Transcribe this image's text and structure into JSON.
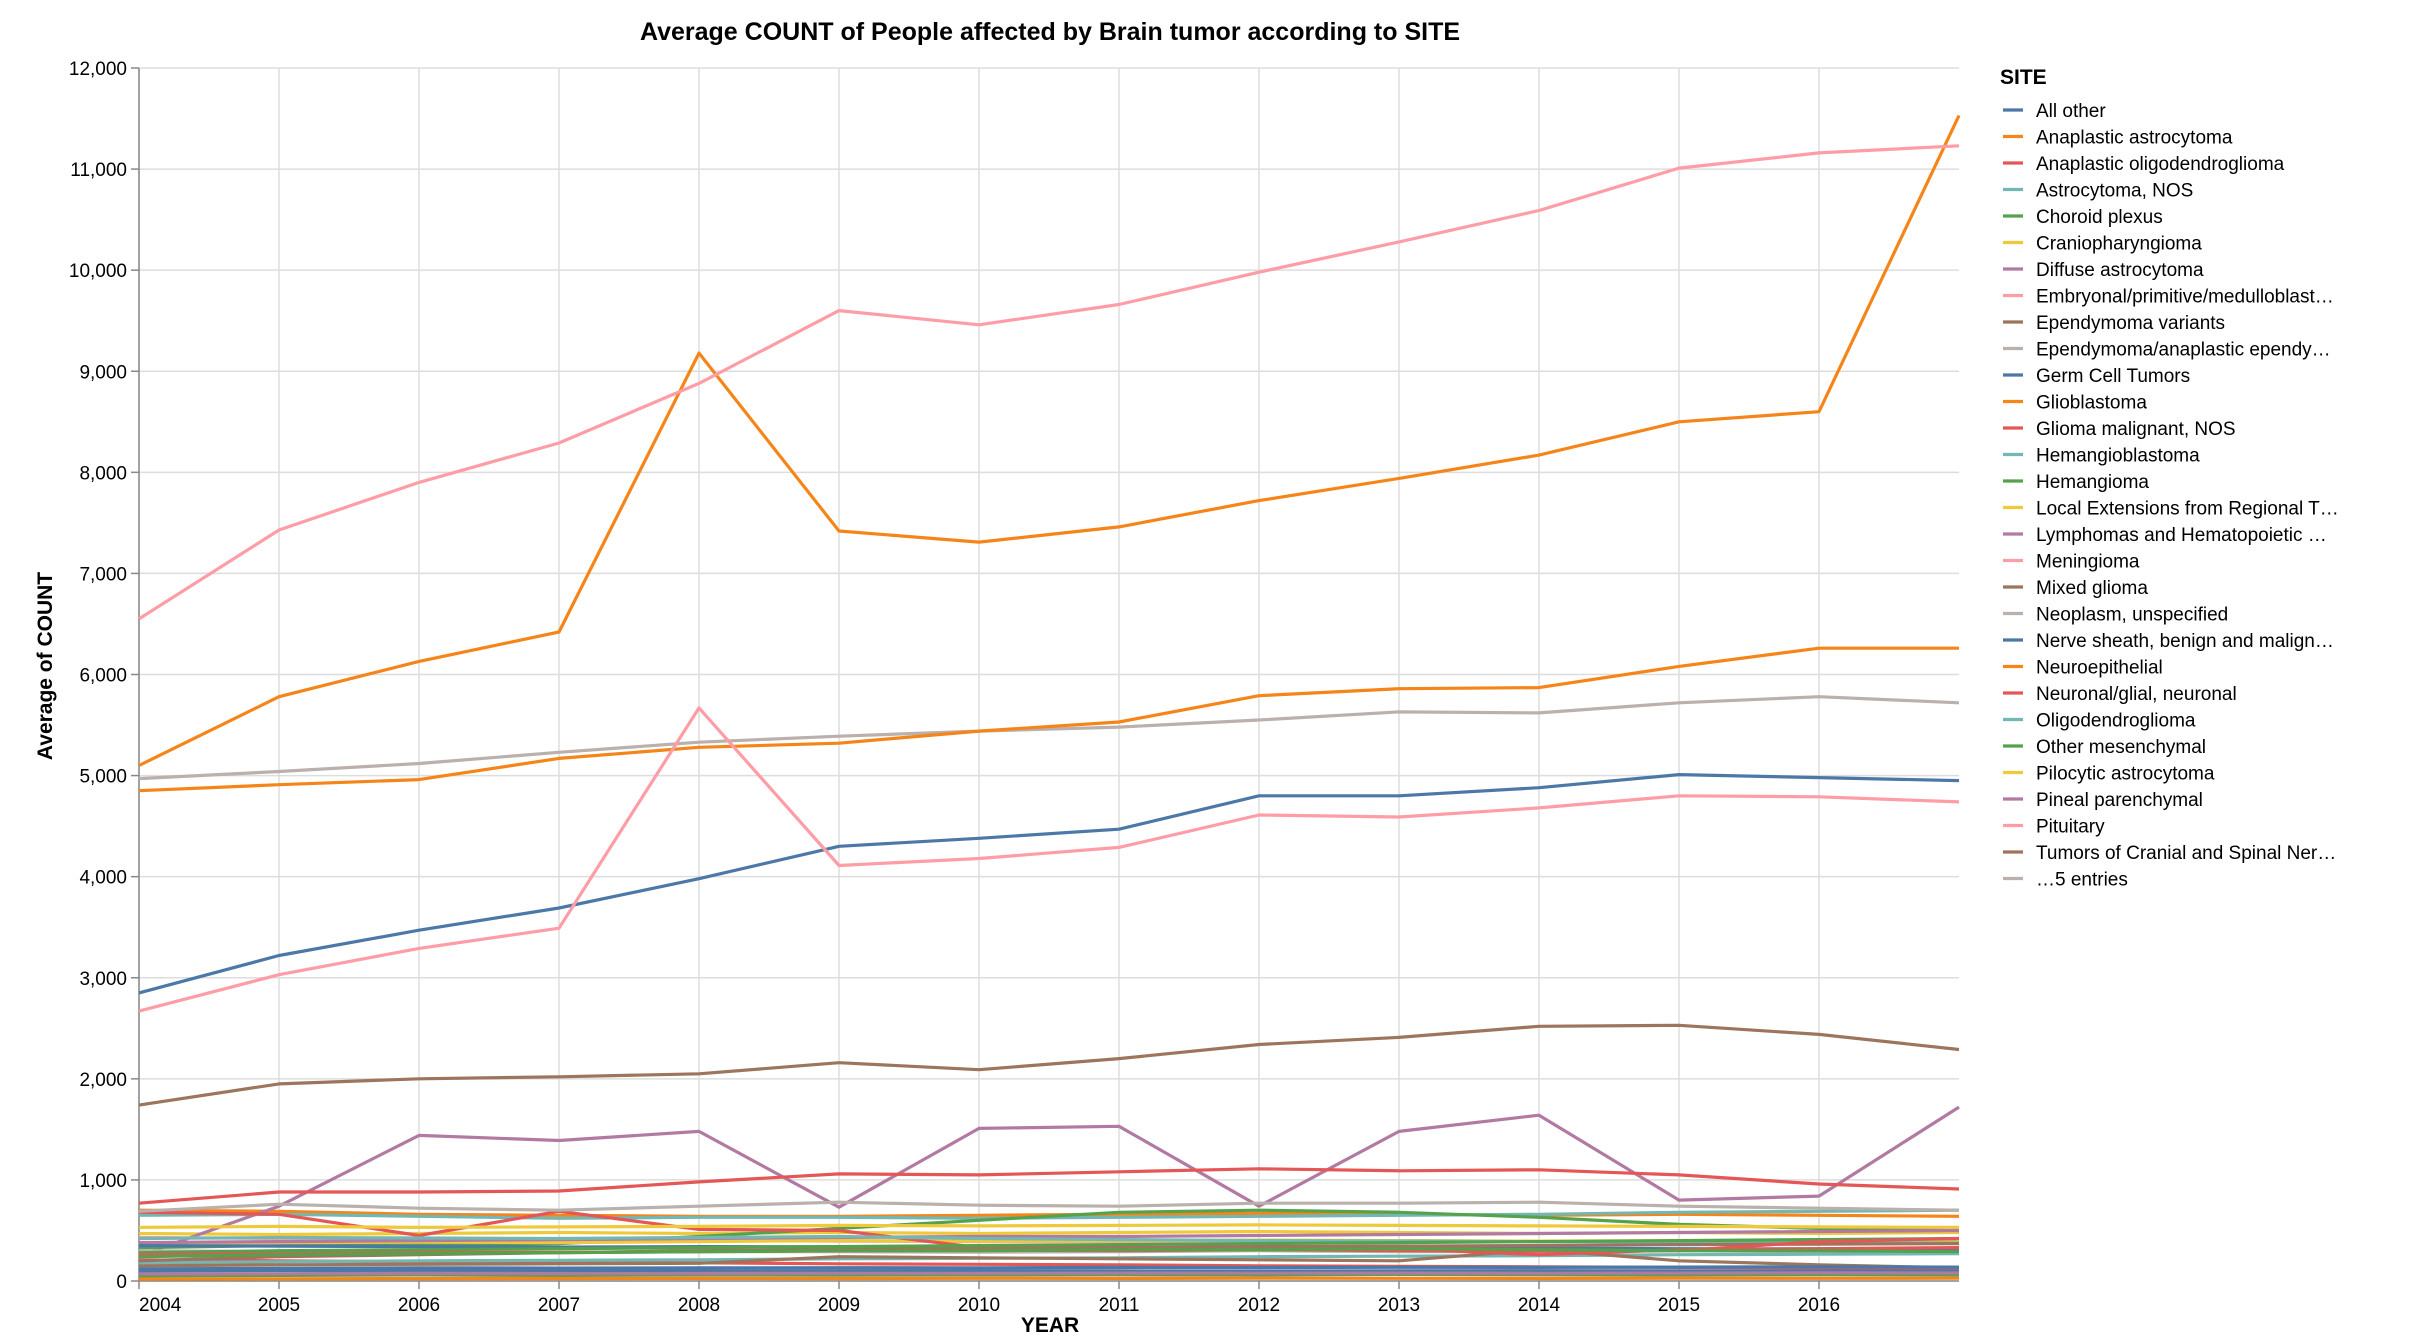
{
  "chart_data": {
    "type": "line",
    "title": "Average COUNT of People affected by Brain tumor according to SITE",
    "xlabel": "YEAR",
    "ylabel": "Average of COUNT",
    "x": [
      2004,
      2005,
      2006,
      2007,
      2008,
      2009,
      2010,
      2011,
      2012,
      2013,
      2014,
      2015,
      2016,
      2017
    ],
    "x_ticks": [
      2004,
      2005,
      2006,
      2007,
      2008,
      2009,
      2010,
      2011,
      2012,
      2013,
      2014,
      2015,
      2016
    ],
    "xlim": [
      2004,
      2017
    ],
    "ylim": [
      0,
      12000
    ],
    "y_ticks": [
      0,
      1000,
      2000,
      3000,
      4000,
      5000,
      6000,
      7000,
      8000,
      9000,
      10000,
      11000,
      12000
    ],
    "y_tick_labels": [
      "0",
      "1,000",
      "2,000",
      "3,000",
      "4,000",
      "5,000",
      "6,000",
      "7,000",
      "8,000",
      "9,000",
      "10,000",
      "11,000",
      "12,000"
    ],
    "grid": true,
    "legend_position": "right",
    "legend_title": "SITE",
    "legend_more": "…5 entries",
    "series": [
      {
        "name": "All other",
        "color": "#4c78a8",
        "values": [
          2850,
          3220,
          3470,
          3690,
          3980,
          4300,
          4380,
          4470,
          4800,
          4800,
          4880,
          5010,
          4980,
          4950
        ]
      },
      {
        "name": "Anaplastic astrocytoma",
        "color": "#f58518",
        "values": [
          700,
          690,
          660,
          650,
          640,
          640,
          650,
          660,
          670,
          660,
          650,
          660,
          650,
          640
        ]
      },
      {
        "name": "Anaplastic oligodendroglioma",
        "color": "#e45756",
        "values": [
          210,
          200,
          190,
          185,
          180,
          170,
          165,
          160,
          150,
          145,
          140,
          135,
          130,
          125
        ]
      },
      {
        "name": "Astrocytoma, NOS",
        "color": "#72b7b2",
        "values": [
          650,
          660,
          640,
          620,
          630,
          630,
          620,
          630,
          640,
          650,
          660,
          680,
          690,
          700
        ]
      },
      {
        "name": "Choroid plexus",
        "color": "#54a24b",
        "values": [
          50,
          55,
          60,
          55,
          60,
          58,
          60,
          62,
          60,
          65,
          62,
          60,
          63,
          60
        ]
      },
      {
        "name": "Craniopharyngioma",
        "color": "#eeca3b",
        "values": [
          470,
          460,
          470,
          480,
          470,
          480,
          470,
          480,
          490,
          480,
          470,
          480,
          470,
          480
        ]
      },
      {
        "name": "Diffuse astrocytoma",
        "color": "#b279a2",
        "values": [
          250,
          740,
          1440,
          1390,
          1480,
          730,
          1510,
          1530,
          740,
          1480,
          1640,
          800,
          840,
          1720
        ]
      },
      {
        "name": "Embryonal/primitive/medulloblast…",
        "color": "#ff9da6",
        "values": [
          430,
          420,
          410,
          400,
          400,
          395,
          390,
          390,
          395,
          400,
          390,
          385,
          380,
          375
        ]
      },
      {
        "name": "Ependymoma variants",
        "color": "#9d755d",
        "values": [
          1740,
          1950,
          2000,
          2020,
          2050,
          2160,
          2090,
          2200,
          2340,
          2410,
          2520,
          2530,
          2440,
          2290
        ]
      },
      {
        "name": "Ependymoma/anaplastic ependy…",
        "color": "#bab0ac",
        "values": [
          300,
          290,
          290,
          280,
          290,
          290,
          285,
          290,
          300,
          290,
          290,
          300,
          290,
          300
        ]
      },
      {
        "name": "Germ Cell Tumors",
        "color": "#4c78a8",
        "values": [
          100,
          105,
          100,
          98,
          100,
          102,
          100,
          100,
          98,
          100,
          102,
          100,
          100,
          98
        ]
      },
      {
        "name": "Glioblastoma",
        "color": "#f58518",
        "values": [
          5100,
          5780,
          6130,
          6420,
          9180,
          7420,
          7310,
          7460,
          7720,
          7940,
          8170,
          8500,
          8600,
          11530
        ]
      },
      {
        "name": "Glioma malignant, NOS",
        "color": "#e45756",
        "values": [
          770,
          880,
          880,
          890,
          980,
          1060,
          1050,
          1080,
          1110,
          1090,
          1100,
          1050,
          960,
          910
        ]
      },
      {
        "name": "Hemangioblastoma",
        "color": "#72b7b2",
        "values": [
          180,
          190,
          200,
          205,
          210,
          220,
          225,
          230,
          240,
          245,
          250,
          260,
          265,
          270
        ]
      },
      {
        "name": "Hemangioma",
        "color": "#54a24b",
        "values": [
          330,
          350,
          360,
          370,
          440,
          520,
          600,
          680,
          700,
          680,
          630,
          560,
          520,
          500
        ]
      },
      {
        "name": "Local Extensions from Regional T…",
        "color": "#eeca3b",
        "values": [
          370,
          380,
          385,
          380,
          390,
          400,
          395,
          400,
          405,
          400,
          395,
          400,
          395,
          400
        ]
      },
      {
        "name": "Lymphomas and Hematopoietic …",
        "color": "#b279a2",
        "values": [
          380,
          390,
          400,
          410,
          420,
          430,
          440,
          440,
          450,
          460,
          470,
          480,
          490,
          500
        ]
      },
      {
        "name": "Meningioma",
        "color": "#ff9da6",
        "values": [
          6550,
          7430,
          7900,
          8290,
          8880,
          9600,
          9460,
          9660,
          9980,
          10280,
          10590,
          11010,
          11160,
          11230
        ]
      },
      {
        "name": "Mixed glioma",
        "color": "#9d755d",
        "values": [
          150,
          160,
          165,
          170,
          175,
          240,
          230,
          220,
          210,
          200,
          310,
          200,
          160,
          130
        ]
      },
      {
        "name": "Neoplasm, unspecified",
        "color": "#bab0ac",
        "values": [
          4970,
          5040,
          5120,
          5230,
          5330,
          5390,
          5440,
          5480,
          5550,
          5630,
          5620,
          5720,
          5780,
          5720
        ]
      },
      {
        "name": "Nerve sheath, benign and malign…",
        "color": "#4c78a8",
        "values": [
          350,
          345,
          340,
          335,
          340,
          338,
          335,
          330,
          330,
          328,
          325,
          320,
          318,
          315
        ]
      },
      {
        "name": "Neuroepithelial",
        "color": "#f58518",
        "values": [
          4850,
          4910,
          4960,
          5170,
          5280,
          5320,
          5440,
          5530,
          5790,
          5860,
          5870,
          6080,
          6260,
          6260
        ]
      },
      {
        "name": "Neuronal/glial, neuronal",
        "color": "#e45756",
        "values": [
          680,
          660,
          450,
          690,
          510,
          500,
          330,
          320,
          340,
          320,
          260,
          310,
          320,
          330
        ]
      },
      {
        "name": "Oligodendroglioma",
        "color": "#72b7b2",
        "values": [
          420,
          430,
          425,
          420,
          430,
          440,
          420,
          410,
          400,
          395,
          390,
          385,
          380,
          375
        ]
      },
      {
        "name": "Other mesenchymal",
        "color": "#54a24b",
        "values": [
          280,
          300,
          310,
          320,
          330,
          340,
          350,
          360,
          370,
          380,
          390,
          400,
          410,
          420
        ]
      },
      {
        "name": "Pilocytic astrocytoma",
        "color": "#eeca3b",
        "values": [
          530,
          540,
          530,
          535,
          540,
          550,
          545,
          550,
          555,
          550,
          545,
          540,
          535,
          530
        ]
      },
      {
        "name": "Pineal parenchymal",
        "color": "#b279a2",
        "values": [
          70,
          72,
          75,
          73,
          74,
          76,
          75,
          78,
          77,
          78,
          76,
          78,
          80,
          79
        ]
      },
      {
        "name": "Pituitary",
        "color": "#ff9da6",
        "values": [
          2670,
          3030,
          3290,
          3490,
          5670,
          4110,
          4180,
          4290,
          4610,
          4590,
          4680,
          4800,
          4790,
          4740
        ]
      },
      {
        "name": "Tumors of Cranial and Spinal Ner…",
        "color": "#9d755d",
        "values": [
          200,
          240,
          260,
          280,
          300,
          310,
          320,
          330,
          340,
          345,
          350,
          360,
          365,
          370
        ]
      },
      {
        "name": "",
        "color": "#bab0ac",
        "values": [
          690,
          760,
          720,
          700,
          740,
          780,
          750,
          740,
          770,
          770,
          780,
          740,
          720,
          700
        ]
      },
      {
        "name": "",
        "color": "#4c78a8",
        "values": [
          120,
          125,
          130,
          128,
          130,
          132,
          130,
          135,
          134,
          136,
          135,
          138,
          140,
          138
        ]
      },
      {
        "name": "",
        "color": "#f58518",
        "values": [
          20,
          22,
          24,
          25,
          26,
          25,
          27,
          26,
          28,
          27,
          26,
          28,
          27,
          28
        ]
      },
      {
        "name": "",
        "color": "#e45756",
        "values": [
          260,
          270,
          280,
          285,
          290,
          300,
          305,
          300,
          310,
          300,
          295,
          300,
          390,
          420
        ]
      },
      {
        "name": "",
        "color": "#54a24b",
        "values": [
          240,
          260,
          270,
          280,
          290,
          300,
          300,
          310,
          310,
          320,
          310,
          300,
          300,
          290
        ]
      }
    ]
  }
}
